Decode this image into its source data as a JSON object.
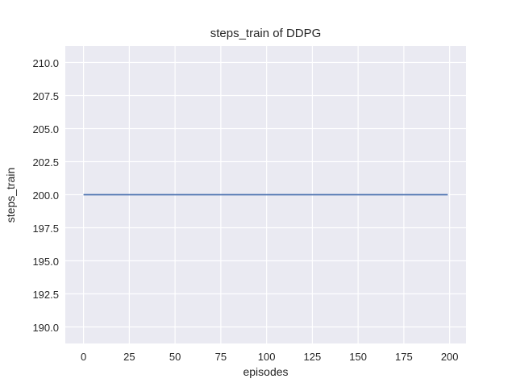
{
  "style": {
    "figure_bg": "#ffffff",
    "axes_bg": "#eaeaf2",
    "grid_color": "#ffffff",
    "text_color": "#262626"
  },
  "chart_data": {
    "type": "line",
    "title": "steps_train of DDPG",
    "xlabel": "episodes",
    "ylabel": "steps_train",
    "xlim": [
      -9.95,
      208.95
    ],
    "ylim": [
      188.75,
      211.25
    ],
    "xticks": [
      0,
      25,
      50,
      75,
      100,
      125,
      150,
      175,
      200
    ],
    "xtick_labels": [
      "0",
      "25",
      "50",
      "75",
      "100",
      "125",
      "150",
      "175",
      "200"
    ],
    "yticks": [
      190.0,
      192.5,
      195.0,
      197.5,
      200.0,
      202.5,
      205.0,
      207.5,
      210.0
    ],
    "ytick_labels": [
      "190.0",
      "192.5",
      "195.0",
      "197.5",
      "200.0",
      "202.5",
      "205.0",
      "207.5",
      "210.0"
    ],
    "grid": true,
    "legend": "none",
    "series": [
      {
        "name": "steps_train",
        "color": "#4c72b0",
        "x": [
          0,
          199
        ],
        "y": [
          200.0,
          200.0
        ]
      }
    ]
  }
}
